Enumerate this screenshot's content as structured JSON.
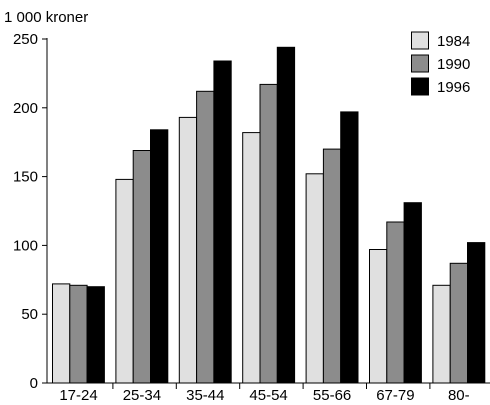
{
  "chart_data": {
    "type": "bar",
    "title": "",
    "ylabel": "1 000 kroner",
    "xlabel": "",
    "categories": [
      "17-24",
      "25-34",
      "35-44",
      "45-54",
      "55-66",
      "67-79",
      "80-"
    ],
    "series": [
      {
        "name": "1984",
        "color": "#e0e0e0",
        "values": [
          72,
          148,
          193,
          182,
          152,
          97,
          71
        ]
      },
      {
        "name": "1990",
        "color": "#8c8c8c",
        "values": [
          71,
          169,
          212,
          217,
          170,
          117,
          87
        ]
      },
      {
        "name": "1996",
        "color": "#000000",
        "values": [
          70,
          184,
          234,
          244,
          197,
          131,
          102
        ]
      }
    ],
    "ylim": [
      0,
      250
    ],
    "yticks": [
      0,
      50,
      100,
      150,
      200,
      250
    ],
    "grid": false,
    "legend": "top-right"
  }
}
